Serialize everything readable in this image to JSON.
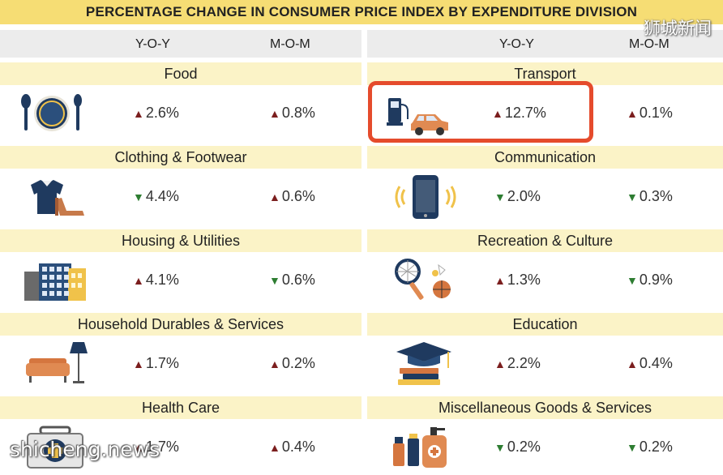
{
  "title": "PERCENTAGE CHANGE IN CONSUMER PRICE INDEX BY EXPENDITURE DIVISION",
  "watermark_top": "狮城新闻",
  "watermark_bottom": "shicheng.news",
  "columns": {
    "yoy": "Y-O-Y",
    "mom": "M-O-M"
  },
  "colors": {
    "up": "#7b1e1e",
    "down": "#2e7d32",
    "title_bg": "#f6dd74",
    "label_bg": "#fbf3c7",
    "highlight": "#e54b2c"
  },
  "left": [
    {
      "name": "Food",
      "icon": "plate-cutlery-icon",
      "yoy": "2.6%",
      "yoy_dir": "up",
      "mom": "0.8%",
      "mom_dir": "up"
    },
    {
      "name": "Clothing & Footwear",
      "icon": "shirt-shoe-icon",
      "yoy": "4.4%",
      "yoy_dir": "down",
      "mom": "0.6%",
      "mom_dir": "up"
    },
    {
      "name": "Housing & Utilities",
      "icon": "buildings-icon",
      "yoy": "4.1%",
      "yoy_dir": "up",
      "mom": "0.6%",
      "mom_dir": "down"
    },
    {
      "name": "Household Durables & Services",
      "icon": "sofa-lamp-icon",
      "yoy": "1.7%",
      "yoy_dir": "up",
      "mom": "0.2%",
      "mom_dir": "up"
    },
    {
      "name": "Health Care",
      "icon": "first-aid-kit-icon",
      "yoy": "1.7%",
      "yoy_dir": "up",
      "mom": "0.4%",
      "mom_dir": "up"
    }
  ],
  "right": [
    {
      "name": "Transport",
      "icon": "fuel-pump-car-icon",
      "yoy": "12.7%",
      "yoy_dir": "up",
      "mom": "0.1%",
      "mom_dir": "up"
    },
    {
      "name": "Communication",
      "icon": "smartphone-icon",
      "yoy": "2.0%",
      "yoy_dir": "down",
      "mom": "0.3%",
      "mom_dir": "down"
    },
    {
      "name": "Recreation & Culture",
      "icon": "racket-ball-icon",
      "yoy": "1.3%",
      "yoy_dir": "up",
      "mom": "0.9%",
      "mom_dir": "down"
    },
    {
      "name": "Education",
      "icon": "graduation-cap-books-icon",
      "yoy": "2.2%",
      "yoy_dir": "up",
      "mom": "0.4%",
      "mom_dir": "up"
    },
    {
      "name": "Miscellaneous Goods & Services",
      "icon": "cosmetics-bottles-icon",
      "yoy": "0.2%",
      "yoy_dir": "down",
      "mom": "0.2%",
      "mom_dir": "down"
    }
  ]
}
